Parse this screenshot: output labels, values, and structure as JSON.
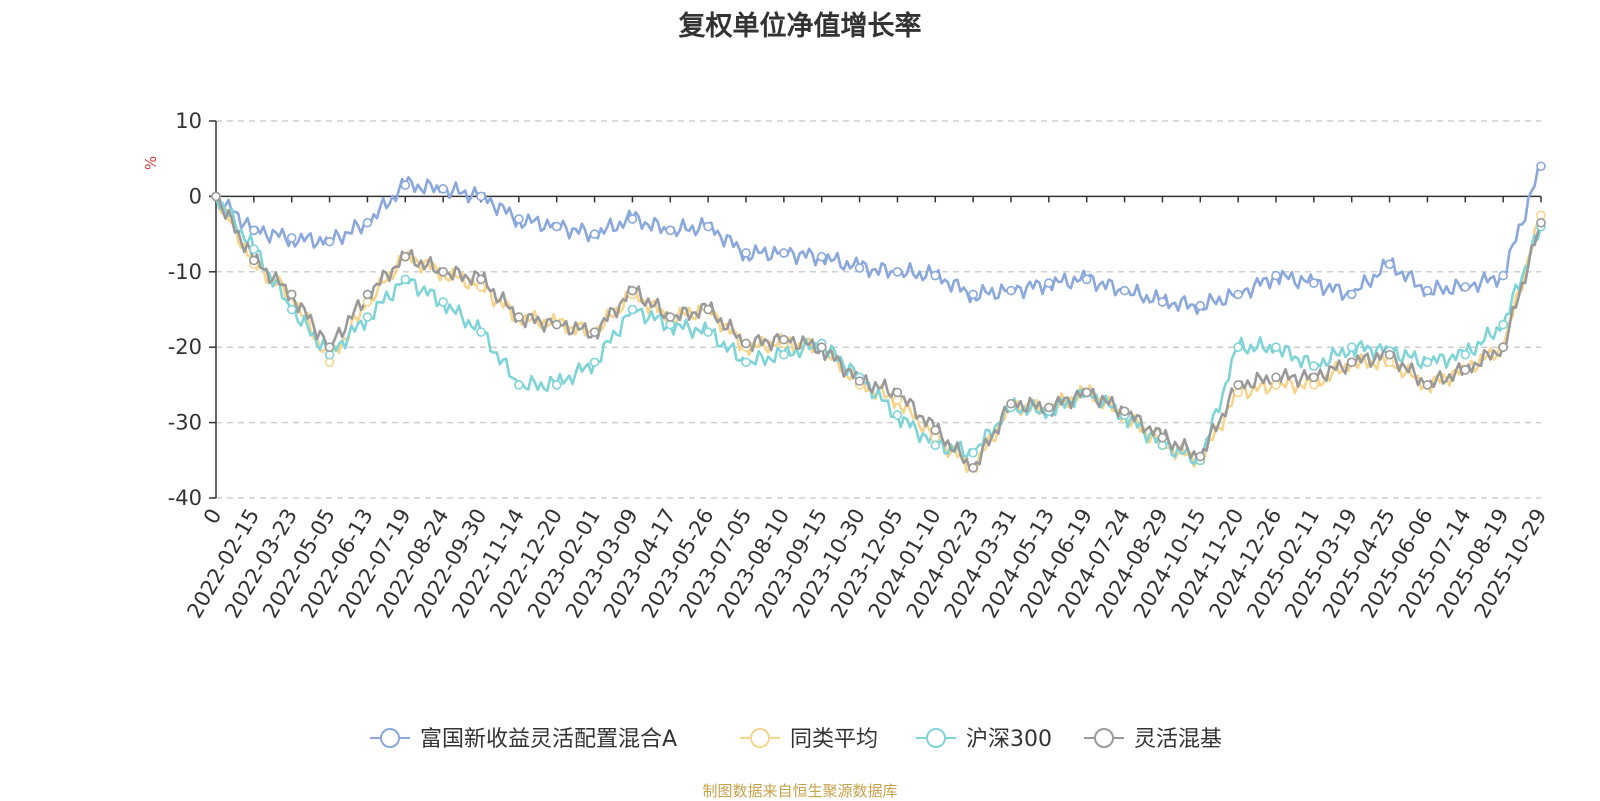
{
  "chart_data": {
    "type": "line",
    "title": "复权单位净值增长率",
    "ylabel": "%",
    "xlabel": "",
    "ylim": [
      -40,
      10
    ],
    "yticks": [
      10,
      0,
      -10,
      -20,
      -30,
      -40
    ],
    "x_ticks": [
      "0",
      "2022-02-15",
      "2022-03-23",
      "2022-05-05",
      "2022-06-13",
      "2022-07-19",
      "2022-08-24",
      "2022-09-30",
      "2022-11-14",
      "2022-12-20",
      "2023-02-01",
      "2023-03-09",
      "2023-04-17",
      "2023-05-26",
      "2023-07-05",
      "2023-08-10",
      "2023-09-15",
      "2023-10-30",
      "2023-12-05",
      "2024-01-10",
      "2024-02-23",
      "2024-03-31",
      "2024-05-13",
      "2024-06-19",
      "2024-07-24",
      "2024-08-29",
      "2024-10-15",
      "2024-11-20",
      "2024-12-26",
      "2025-02-11",
      "2025-03-19",
      "2025-04-25",
      "2025-06-06",
      "2025-07-14",
      "2025-08-19",
      "2025-10-29"
    ],
    "series": [
      {
        "name": "富国新收益灵活配置混合A",
        "color": "#8aa8dc",
        "values": [
          0,
          -4.5,
          -5.5,
          -6,
          -3.5,
          1.5,
          1,
          0,
          -3,
          -4,
          -5,
          -3,
          -4.5,
          -4,
          -7.5,
          -7.5,
          -8,
          -9.5,
          -10,
          -10.5,
          -13,
          -12.5,
          -11.5,
          -11,
          -12.5,
          -14,
          -14.5,
          -13,
          -10.5,
          -11.5,
          -13,
          -9,
          -12.5,
          -12,
          -10.5,
          4
        ]
      },
      {
        "name": "同类平均",
        "color": "#f7d58c",
        "values": [
          0,
          -9,
          -13,
          -22,
          -14,
          -8,
          -10,
          -12,
          -16,
          -17,
          -18,
          -13,
          -16,
          -15,
          -20,
          -19.5,
          -20,
          -25,
          -27,
          -32,
          -36,
          -28,
          -28,
          -26,
          -29,
          -33,
          -35,
          -26,
          -25,
          -25,
          -22,
          -22,
          -25,
          -23,
          -20,
          -2.5
        ]
      },
      {
        "name": "沪深300",
        "color": "#7fd4d8",
        "values": [
          0,
          -7,
          -15,
          -21,
          -16,
          -11,
          -14,
          -18,
          -25,
          -25,
          -22,
          -15,
          -17,
          -18,
          -22,
          -21,
          -19.5,
          -24,
          -29,
          -33,
          -34,
          -28,
          -28.5,
          -26,
          -29,
          -33,
          -35,
          -20,
          -20,
          -22.5,
          -20,
          -20.5,
          -22,
          -21,
          -17,
          -4
        ]
      },
      {
        "name": "灵活混基",
        "color": "#999999",
        "values": [
          0,
          -8.5,
          -13,
          -20,
          -13,
          -8,
          -10,
          -11,
          -16,
          -17,
          -18,
          -12.5,
          -16,
          -15,
          -19.5,
          -19,
          -20,
          -24.5,
          -26,
          -31,
          -36,
          -27.5,
          -28,
          -26,
          -28.5,
          -32,
          -34.5,
          -25,
          -24,
          -24,
          -22,
          -21,
          -25,
          -23,
          -20,
          -3.5
        ]
      }
    ]
  },
  "legend": {
    "s0": "富国新收益灵活配置混合A",
    "s1": "同类平均",
    "s2": "沪深300",
    "s3": "灵活混基"
  },
  "source_note": "制图数据来自恒生聚源数据库"
}
